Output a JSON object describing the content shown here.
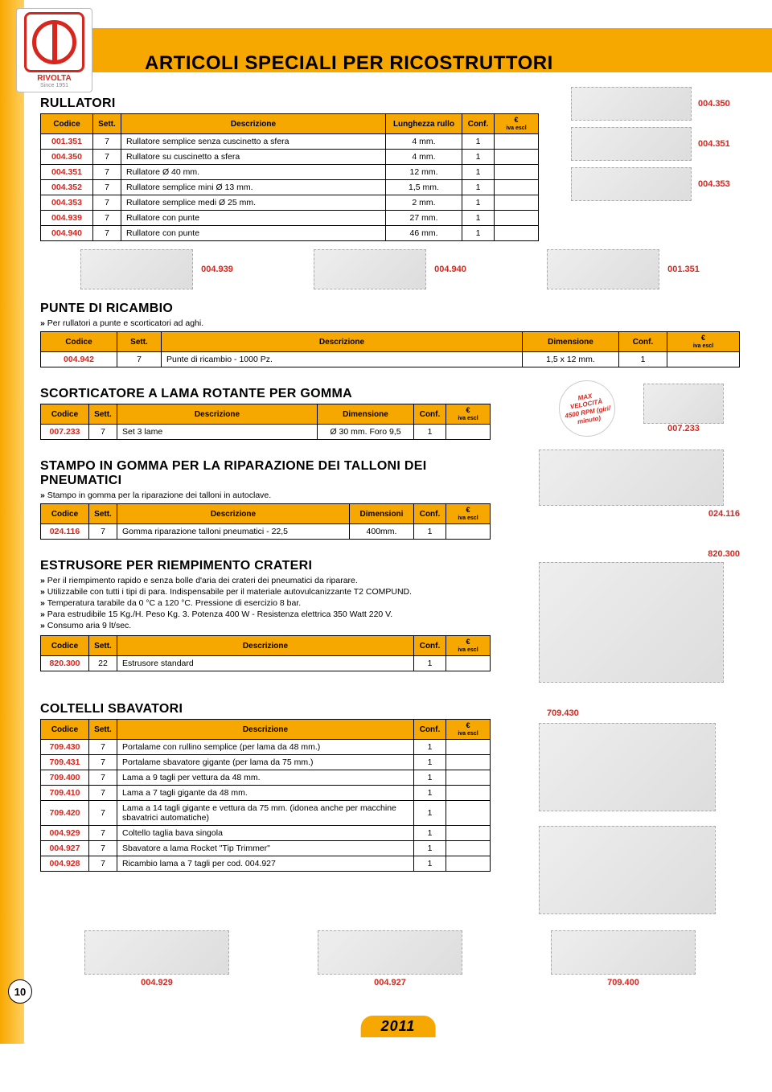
{
  "logo": {
    "brand": "RIVOLTA",
    "since": "Since 1951"
  },
  "page_title": "ARTICOLI SPECIALI PER RICOSTRUTTORI",
  "page_number": "10",
  "footer_year": "2011",
  "rullatori": {
    "title": "RULLATORI",
    "headers": {
      "code": "Codice",
      "sett": "Sett.",
      "desc": "Descrizione",
      "len": "Lunghezza rullo",
      "conf": "Conf.",
      "euro": "€",
      "iva": "iva escl"
    },
    "rows": [
      {
        "code": "001.351",
        "sett": "7",
        "desc": "Rullatore semplice senza cuscinetto a sfera",
        "len": "4 mm.",
        "conf": "1"
      },
      {
        "code": "004.350",
        "sett": "7",
        "desc": "Rullatore su cuscinetto a sfera",
        "len": "4 mm.",
        "conf": "1"
      },
      {
        "code": "004.351",
        "sett": "7",
        "desc": "Rullatore Ø 40 mm.",
        "len": "12 mm.",
        "conf": "1"
      },
      {
        "code": "004.352",
        "sett": "7",
        "desc": "Rullatore semplice mini Ø 13 mm.",
        "len": "1,5 mm.",
        "conf": "1"
      },
      {
        "code": "004.353",
        "sett": "7",
        "desc": "Rullatore semplice medi Ø 25 mm.",
        "len": "2 mm.",
        "conf": "1"
      },
      {
        "code": "004.939",
        "sett": "7",
        "desc": "Rullatore con punte",
        "len": "27 mm.",
        "conf": "1"
      },
      {
        "code": "004.940",
        "sett": "7",
        "desc": "Rullatore con punte",
        "len": "46 mm.",
        "conf": "1"
      }
    ],
    "side_labels": [
      "004.350",
      "004.351",
      "004.353"
    ],
    "bottom_labels": [
      "004.939",
      "004.940",
      "001.351"
    ]
  },
  "punte": {
    "title": "PUNTE DI RICAMBIO",
    "sub": "Per rullatori a punte e scorticatori ad aghi.",
    "headers": {
      "code": "Codice",
      "sett": "Sett.",
      "desc": "Descrizione",
      "dim": "Dimensione",
      "conf": "Conf.",
      "euro": "€",
      "iva": "iva escl"
    },
    "rows": [
      {
        "code": "004.942",
        "sett": "7",
        "desc": "Punte di ricambio - 1000 Pz.",
        "dim": "1,5 x 12 mm.",
        "conf": "1"
      }
    ]
  },
  "scorticatore": {
    "title": "SCORTICATORE A LAMA ROTANTE PER GOMMA",
    "headers": {
      "code": "Codice",
      "sett": "Sett.",
      "desc": "Descrizione",
      "dim": "Dimensione",
      "conf": "Conf.",
      "euro": "€",
      "iva": "iva escl"
    },
    "rows": [
      {
        "code": "007.233",
        "sett": "7",
        "desc": "Set 3 lame",
        "dim": "Ø 30 mm. Foro 9,5",
        "conf": "1"
      }
    ],
    "badge": {
      "l1": "MAX",
      "l2": "VELOCITÀ",
      "l3": "4500 RPM (giri/",
      "l4": "minuto)"
    },
    "img_label": "007.233"
  },
  "stampo": {
    "title": "STAMPO IN GOMMA PER LA RIPARAZIONE DEI TALLONI DEI PNEUMATICI",
    "sub": "Stampo in gomma per la riparazione dei talloni in autoclave.",
    "headers": {
      "code": "Codice",
      "sett": "Sett.",
      "desc": "Descrizione",
      "dim": "Dimensioni",
      "conf": "Conf.",
      "euro": "€",
      "iva": "iva escl"
    },
    "rows": [
      {
        "code": "024.116",
        "sett": "7",
        "desc": "Gomma riparazione talloni pneumatici - 22,5",
        "dim": "400mm.",
        "conf": "1"
      }
    ],
    "img_label": "024.116"
  },
  "estrusore": {
    "title": "ESTRUSORE PER RIEMPIMENTO CRATERI",
    "bullets": [
      "Per il riempimento rapido e senza bolle d'aria dei crateri dei pneumatici da riparare.",
      "Utilizzabile con tutti i tipi di para. Indispensabile per il materiale autovulcanizzante T2 COMPUND.",
      "Temperatura tarabile da 0 °C a 120 °C. Pressione di esercizio 8 bar.",
      "Para estrudibile 15 Kg./H. Peso Kg. 3. Potenza 400 W - Resistenza elettrica 350 Watt 220 V.",
      "Consumo aria 9 lt/sec."
    ],
    "headers": {
      "code": "Codice",
      "sett": "Sett.",
      "desc": "Descrizione",
      "conf": "Conf.",
      "euro": "€",
      "iva": "iva escl"
    },
    "rows": [
      {
        "code": "820.300",
        "sett": "22",
        "desc": "Estrusore standard",
        "conf": "1"
      }
    ],
    "img_label": "820.300"
  },
  "coltelli": {
    "title": "COLTELLI SBAVATORI",
    "headers": {
      "code": "Codice",
      "sett": "Sett.",
      "desc": "Descrizione",
      "conf": "Conf.",
      "euro": "€",
      "iva": "iva escl"
    },
    "rows": [
      {
        "code": "709.430",
        "sett": "7",
        "desc": "Portalame con rullino semplice (per lama da 48 mm.)",
        "conf": "1"
      },
      {
        "code": "709.431",
        "sett": "7",
        "desc": "Portalame sbavatore gigante (per lama da 75 mm.)",
        "conf": "1"
      },
      {
        "code": "709.400",
        "sett": "7",
        "desc": "Lama a 9 tagli per vettura da 48 mm.",
        "conf": "1"
      },
      {
        "code": "709.410",
        "sett": "7",
        "desc": "Lama a 7 tagli gigante da 48 mm.",
        "conf": "1"
      },
      {
        "code": "709.420",
        "sett": "7",
        "desc": "Lama a 14 tagli gigante e vettura da 75 mm. (idonea anche per macchine sbavatrici automatiche)",
        "conf": "1"
      },
      {
        "code": "004.929",
        "sett": "7",
        "desc": "Coltello taglia bava singola",
        "conf": "1"
      },
      {
        "code": "004.927",
        "sett": "7",
        "desc": "Sbavatore a lama Rocket \"Tip Trimmer\"",
        "conf": "1"
      },
      {
        "code": "004.928",
        "sett": "7",
        "desc": "Ricambio lama a 7 tagli per cod. 004.927",
        "conf": "1"
      }
    ],
    "side_label": "709.430",
    "bottom_labels": [
      "004.929",
      "004.927",
      "709.400"
    ]
  }
}
